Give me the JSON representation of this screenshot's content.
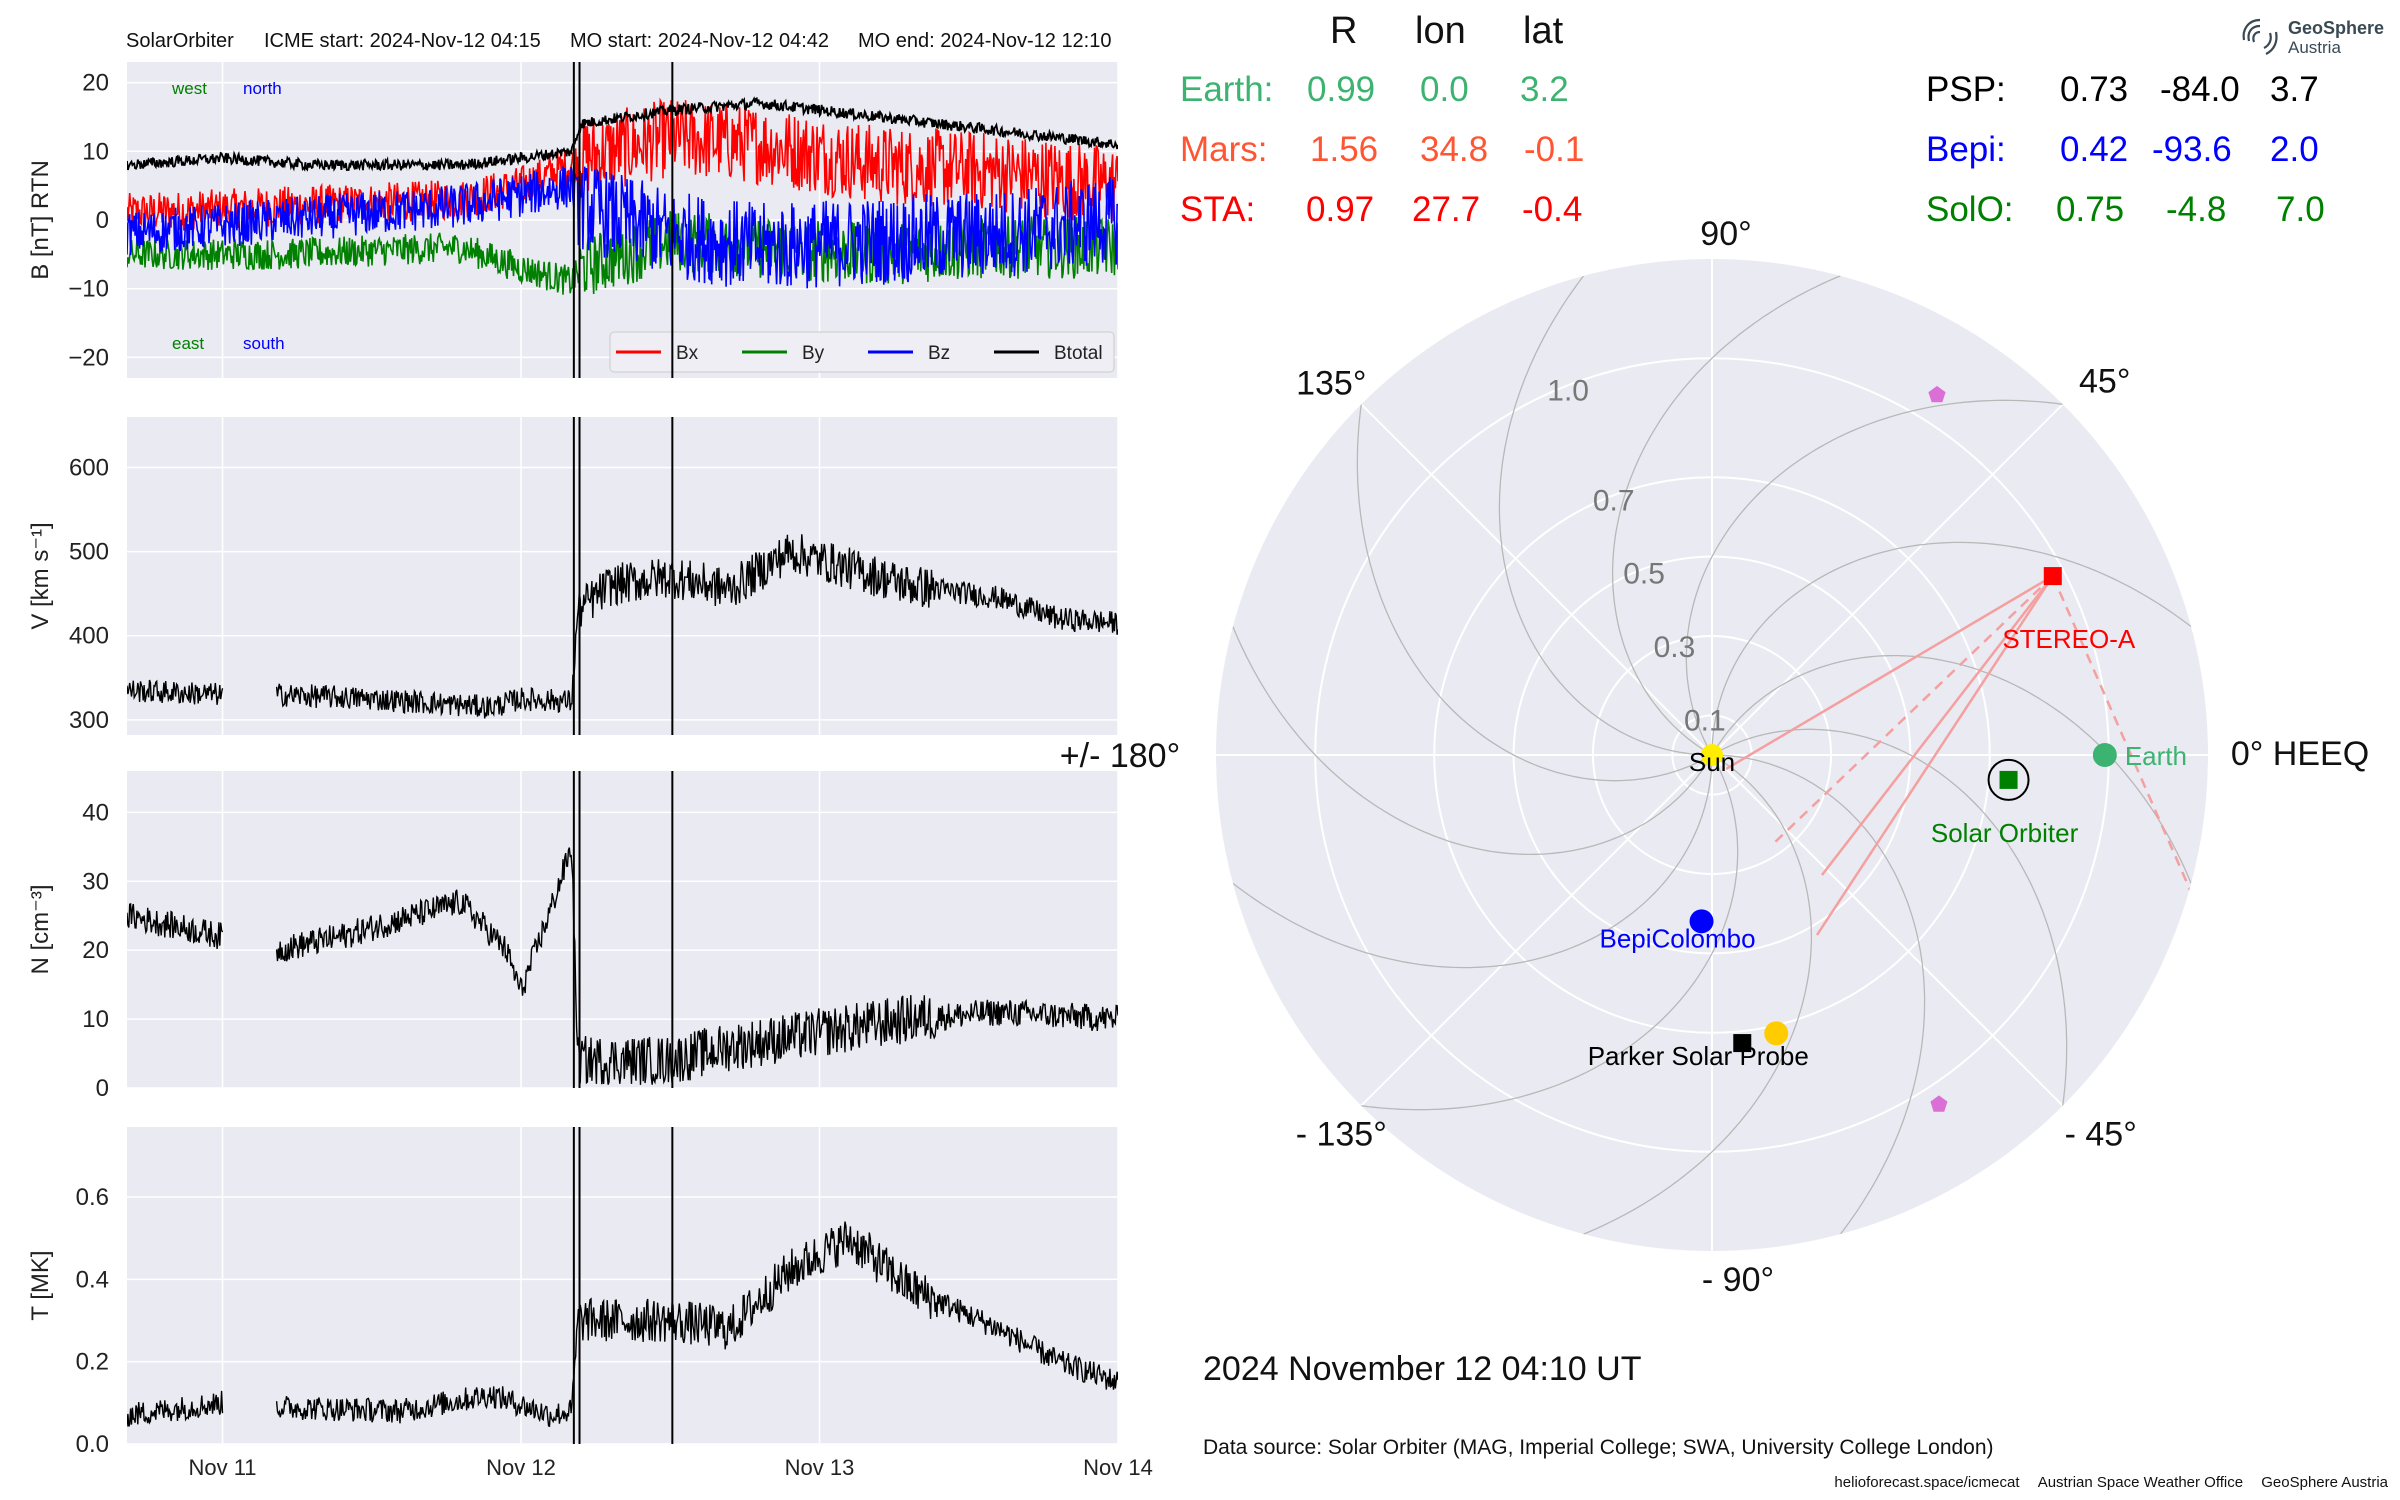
{
  "header": {
    "spacecraft": "SolarOrbiter",
    "icme_start": "ICME start: 2024-Nov-12 04:15",
    "mo_start": "MO start: 2024-Nov-12 04:42",
    "mo_end": "MO end: 2024-Nov-12 12:10"
  },
  "colors": {
    "bx": "#ff0000",
    "by": "#008000",
    "bz": "#0000ff",
    "btotal": "#000000",
    "earth": "#3cb371",
    "mars": "#ff5533",
    "sta": "#ff0000",
    "psp": "#000000",
    "bepi": "#0000ff",
    "solo": "#008000",
    "sun": "#ffee00",
    "panel_bg": "#eaeaf2"
  },
  "positions": {
    "columns": [
      "R",
      "lon",
      "lat"
    ],
    "rows": [
      {
        "name": "Earth:",
        "R": "0.99",
        "lon": "0.0",
        "lat": "3.2",
        "color": "#3cb371"
      },
      {
        "name": "Mars:",
        "R": "1.56",
        "lon": "34.8",
        "lat": "-0.1",
        "color": "#ff5533"
      },
      {
        "name": "STA:",
        "R": "0.97",
        "lon": "27.7",
        "lat": "-0.4",
        "color": "#ff0000"
      },
      {
        "name": "PSP:",
        "R": "0.73",
        "lon": "-84.0",
        "lat": "3.7",
        "color": "#000000"
      },
      {
        "name": "Bepi:",
        "R": "0.42",
        "lon": "-93.6",
        "lat": "2.0",
        "color": "#0000ff"
      },
      {
        "name": "SolO:",
        "R": "0.75",
        "lon": "-4.8",
        "lat": "7.0",
        "color": "#008000"
      }
    ]
  },
  "logo": {
    "line1": "GeoSphere",
    "line2": "Austria"
  },
  "timeseries": {
    "x_ticks": [
      "Nov 11",
      "Nov 12",
      "Nov 13",
      "Nov 14"
    ],
    "x_range_days": [
      10.68,
      14.0
    ],
    "event_lines": [
      12.177,
      12.196,
      12.507
    ],
    "panels": [
      {
        "key": "b",
        "ylabel": "B [nT] RTN",
        "ylim": [
          -23,
          23
        ],
        "yticks": [
          -20,
          -10,
          0,
          10,
          20
        ],
        "corner_labels": {
          "west": "west",
          "north": "north",
          "east": "east",
          "south": "south"
        },
        "legend": [
          "Bx",
          "By",
          "Bz",
          "Btotal"
        ],
        "levels": {
          "btotal": [
            [
              10.68,
              8
            ],
            [
              11.0,
              9
            ],
            [
              11.3,
              8
            ],
            [
              11.8,
              8
            ],
            [
              12.0,
              9
            ],
            [
              12.17,
              10
            ],
            [
              12.2,
              14
            ],
            [
              12.5,
              16
            ],
            [
              12.8,
              17
            ],
            [
              13.2,
              15
            ],
            [
              13.6,
              13
            ],
            [
              14.0,
              11
            ]
          ],
          "bx": [
            [
              10.68,
              1
            ],
            [
              11.2,
              2
            ],
            [
              11.8,
              3
            ],
            [
              12.0,
              5
            ],
            [
              12.17,
              8
            ],
            [
              12.2,
              9
            ],
            [
              12.5,
              12
            ],
            [
              12.8,
              11
            ],
            [
              13.2,
              8
            ],
            [
              13.6,
              7
            ],
            [
              14.0,
              5
            ]
          ],
          "by": [
            [
              10.68,
              -5
            ],
            [
              11.2,
              -5
            ],
            [
              11.8,
              -4
            ],
            [
              12.0,
              -7
            ],
            [
              12.17,
              -9
            ],
            [
              12.2,
              -7
            ],
            [
              12.5,
              -3
            ],
            [
              12.8,
              -4
            ],
            [
              13.2,
              -5
            ],
            [
              13.6,
              -4
            ],
            [
              14.0,
              -4
            ]
          ],
          "bz": [
            [
              10.68,
              -2
            ],
            [
              11.2,
              0
            ],
            [
              11.8,
              2
            ],
            [
              12.17,
              5
            ],
            [
              12.2,
              2
            ],
            [
              12.5,
              -2
            ],
            [
              12.8,
              -4
            ],
            [
              13.2,
              -3
            ],
            [
              13.6,
              -2
            ],
            [
              14.0,
              0
            ]
          ]
        }
      },
      {
        "key": "v",
        "ylabel": "V [km s⁻¹]",
        "ylim": [
          282,
          660
        ],
        "yticks": [
          300,
          400,
          500,
          600
        ],
        "gaps": [
          [
            11.0,
            11.18
          ]
        ],
        "levels": [
          [
            10.68,
            335
          ],
          [
            11.0,
            330
          ],
          [
            11.18,
            330
          ],
          [
            11.5,
            325
          ],
          [
            11.9,
            315
          ],
          [
            12.0,
            325
          ],
          [
            12.17,
            322
          ],
          [
            12.19,
            430
          ],
          [
            12.3,
            460
          ],
          [
            12.5,
            470
          ],
          [
            12.7,
            455
          ],
          [
            12.9,
            500
          ],
          [
            13.1,
            480
          ],
          [
            13.3,
            460
          ],
          [
            13.6,
            445
          ],
          [
            13.8,
            420
          ],
          [
            14.0,
            415
          ]
        ]
      },
      {
        "key": "n",
        "ylabel": "N [cm⁻³]",
        "ylim": [
          0,
          46
        ],
        "yticks": [
          0,
          10,
          20,
          30,
          40
        ],
        "gaps": [
          [
            11.0,
            11.18
          ]
        ],
        "levels": [
          [
            10.68,
            25
          ],
          [
            11.0,
            22
          ],
          [
            11.18,
            20
          ],
          [
            11.4,
            22
          ],
          [
            11.8,
            27
          ],
          [
            11.95,
            20
          ],
          [
            12.0,
            14
          ],
          [
            12.1,
            26
          ],
          [
            12.17,
            35
          ],
          [
            12.19,
            4
          ],
          [
            12.5,
            4
          ],
          [
            12.7,
            6
          ],
          [
            13.0,
            8
          ],
          [
            13.3,
            10
          ],
          [
            13.6,
            11
          ],
          [
            14.0,
            10
          ]
        ]
      },
      {
        "key": "t",
        "ylabel": "T [MK]",
        "ylim": [
          0,
          0.77
        ],
        "yticks": [
          0.0,
          0.2,
          0.4,
          0.6
        ],
        "gaps": [
          [
            11.0,
            11.18
          ]
        ],
        "levels": [
          [
            10.68,
            0.07
          ],
          [
            11.0,
            0.1
          ],
          [
            11.18,
            0.09
          ],
          [
            11.6,
            0.08
          ],
          [
            11.9,
            0.12
          ],
          [
            12.1,
            0.07
          ],
          [
            12.17,
            0.08
          ],
          [
            12.19,
            0.3
          ],
          [
            12.5,
            0.3
          ],
          [
            12.7,
            0.28
          ],
          [
            12.9,
            0.42
          ],
          [
            13.1,
            0.5
          ],
          [
            13.3,
            0.38
          ],
          [
            13.6,
            0.28
          ],
          [
            13.8,
            0.2
          ],
          [
            14.0,
            0.15
          ]
        ]
      }
    ]
  },
  "polar": {
    "angle_labels": [
      {
        "text": "90°",
        "deg": 90
      },
      {
        "text": "45°",
        "deg": 45
      },
      {
        "text": "0° HEEQ",
        "deg": 0
      },
      {
        "text": "- 45°",
        "deg": -45
      },
      {
        "text": "- 90°",
        "deg": -90
      },
      {
        "text": "- 135°",
        "deg": -135
      },
      {
        "text": "+/- 180°",
        "deg": 180
      },
      {
        "text": "135°",
        "deg": 135
      }
    ],
    "r_max": 1.25,
    "r_ticks": [
      "0.1",
      "0.3",
      "0.5",
      "0.7",
      "1.0"
    ],
    "bodies": [
      {
        "name": "Sun",
        "r": 0.0,
        "lon": 0.0,
        "marker": "circle",
        "color": "#ffee00",
        "label": "Sun",
        "label_color": "#000000"
      },
      {
        "name": "Earth",
        "r": 0.99,
        "lon": 0.0,
        "marker": "circle",
        "color": "#3cb371",
        "label": "Earth",
        "label_color": "#3cb371"
      },
      {
        "name": "STEREO-A",
        "r": 0.97,
        "lon": 27.7,
        "marker": "square",
        "color": "#ff0000",
        "label": "STEREO-A",
        "label_color": "#ff0000"
      },
      {
        "name": "Solar Orbiter",
        "r": 0.75,
        "lon": -4.8,
        "marker": "square-ring",
        "color": "#008000",
        "label": "Solar Orbiter",
        "label_color": "#008000"
      },
      {
        "name": "BepiColombo",
        "r": 0.42,
        "lon": -93.6,
        "marker": "circle",
        "color": "#0000ff",
        "label": "BepiColombo",
        "label_color": "#0000ff"
      },
      {
        "name": "Parker Solar Probe",
        "r": 0.73,
        "lon": -84.0,
        "marker": "square",
        "color": "#000000",
        "label": "Parker Solar Probe",
        "label_color": "#000000"
      },
      {
        "name": "PSP-fov",
        "r": 0.72,
        "lon": -77.0,
        "marker": "circle",
        "color": "#ffcc00",
        "label": "",
        "label_color": "#000000"
      },
      {
        "name": "planet-a",
        "r": 1.07,
        "lon": 58.0,
        "marker": "pentagon",
        "color": "#da70d6",
        "label": "",
        "label_color": "#000000"
      },
      {
        "name": "planet-b",
        "r": 1.05,
        "lon": -57.0,
        "marker": "pentagon",
        "color": "#da70d6",
        "label": "",
        "label_color": "#000000"
      }
    ]
  },
  "footer": {
    "date": "2024 November 12  04:10 UT",
    "source": "Data source: Solar Orbiter (MAG, Imperial College; SWA, University College London)",
    "credits": [
      "helioforecast.space/icmecat",
      "Austrian Space Weather Office",
      "GeoSphere Austria"
    ]
  }
}
